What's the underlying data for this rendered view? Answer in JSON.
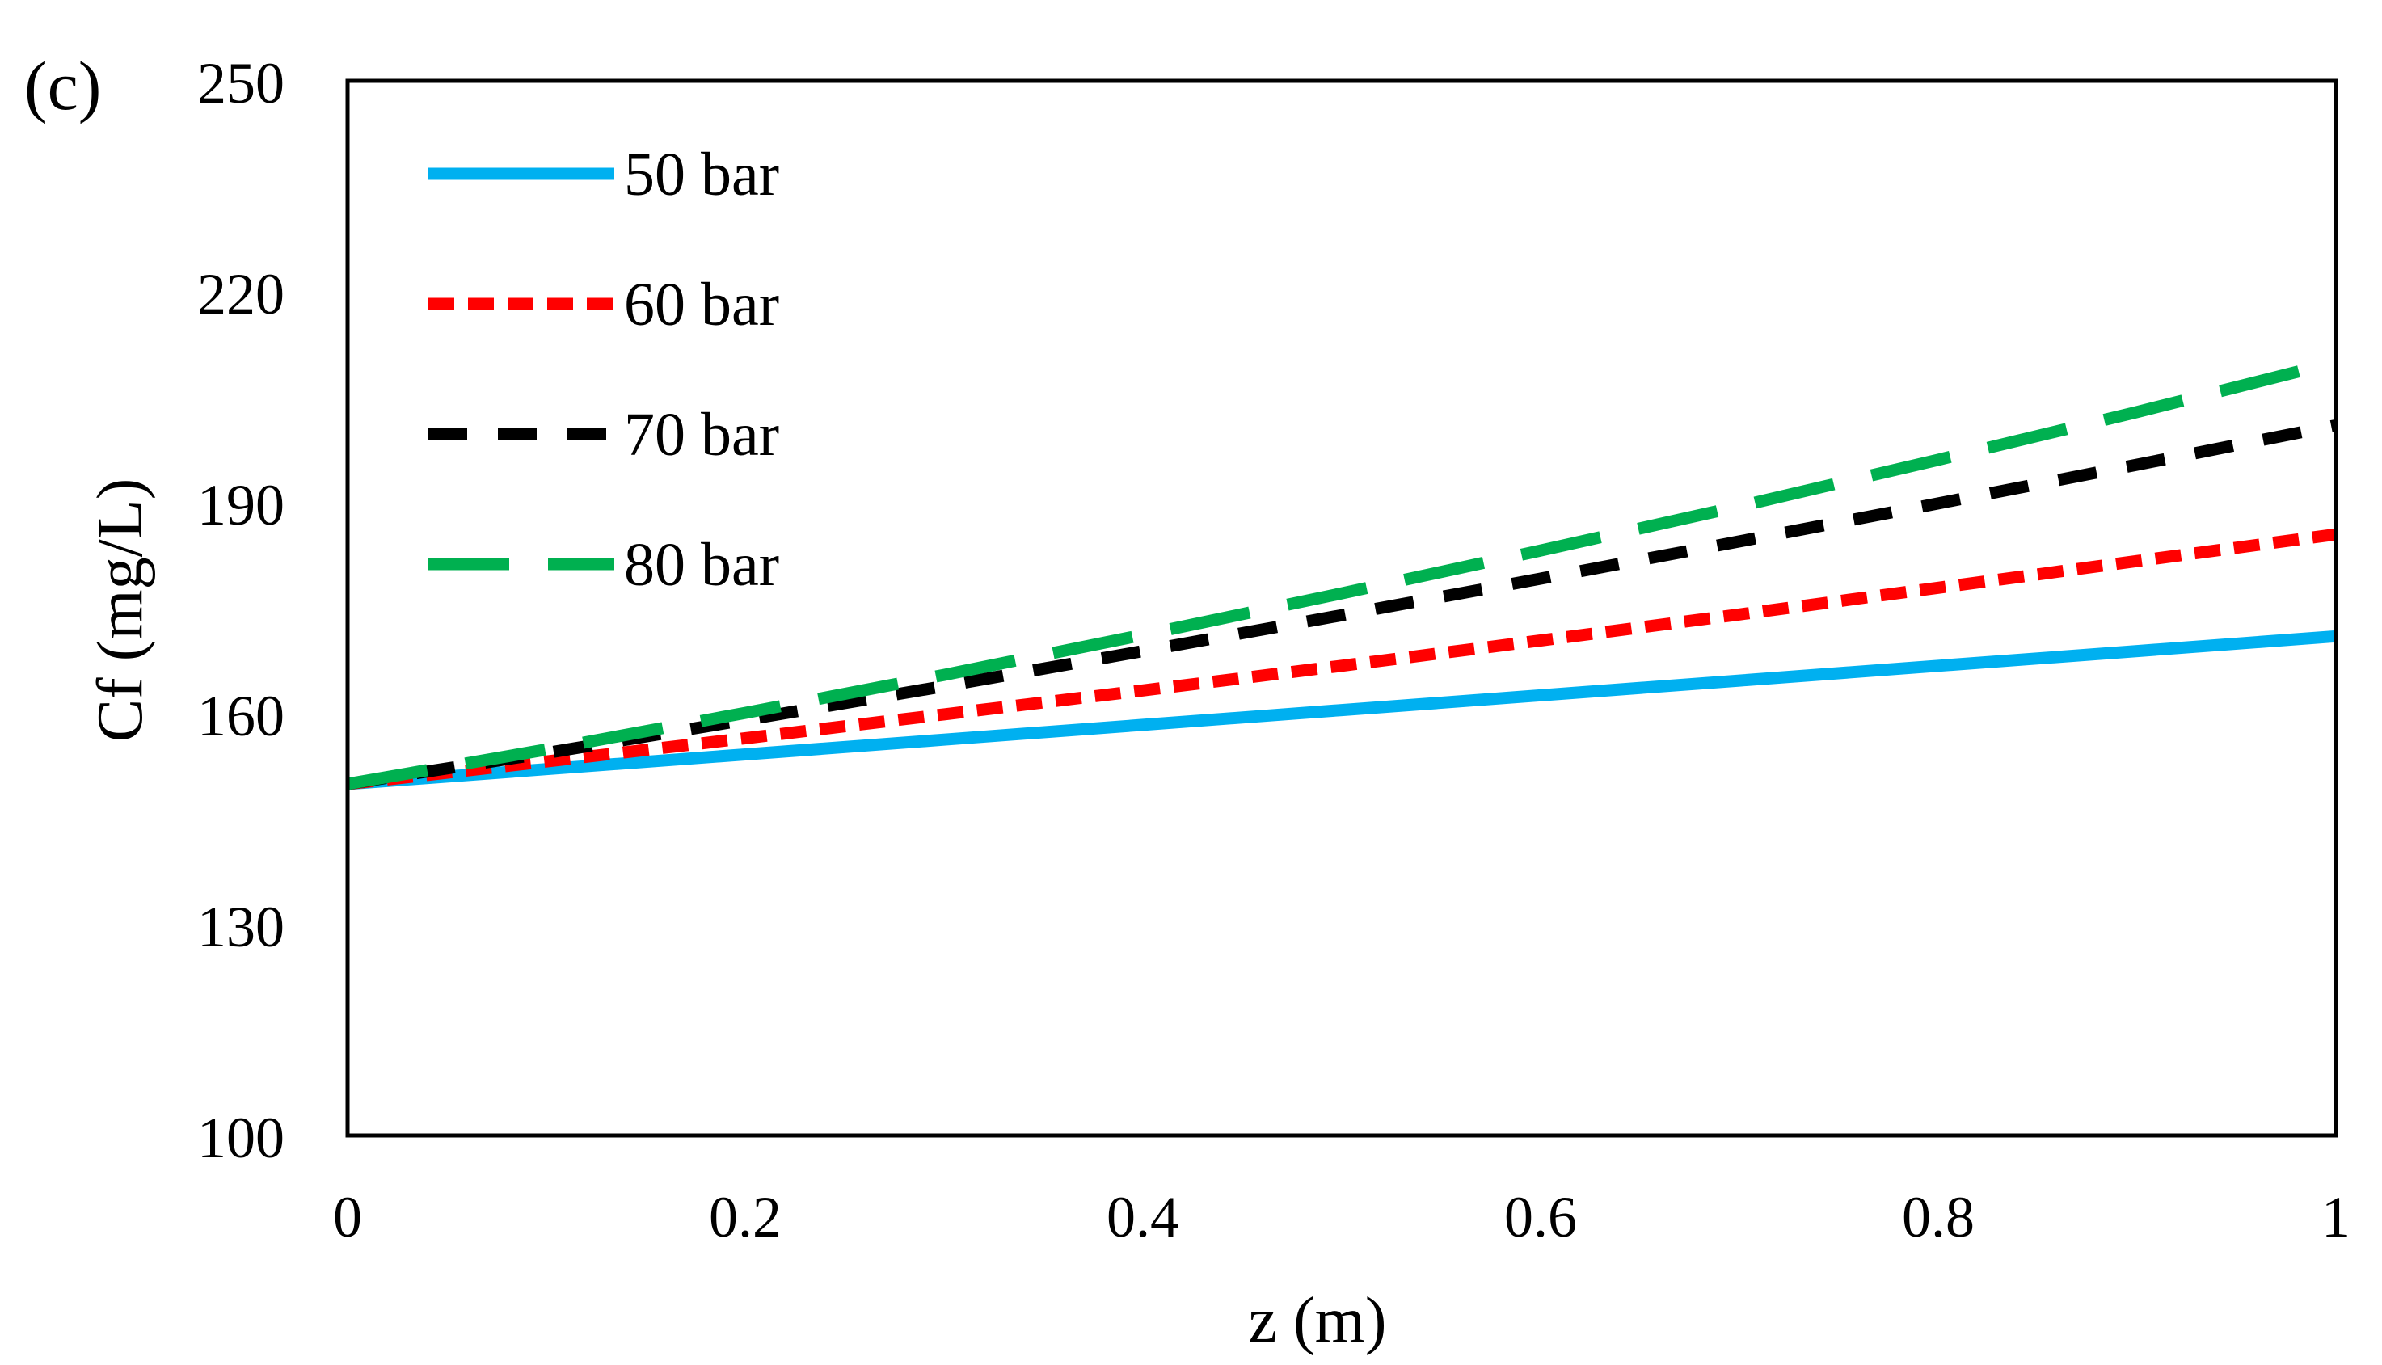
{
  "panel_label": "(c)",
  "chart_data": {
    "type": "line",
    "title": "",
    "xlabel": "z (m)",
    "ylabel": "Cf (mg/L)",
    "xlim": [
      0,
      1
    ],
    "ylim": [
      100,
      250
    ],
    "x_ticks": [
      0,
      0.2,
      0.4,
      0.6,
      0.8,
      1
    ],
    "x_tick_labels": [
      "0",
      "0.2",
      "0.4",
      "0.6",
      "0.8",
      "1"
    ],
    "y_ticks": [
      100,
      130,
      160,
      190,
      220,
      250
    ],
    "y_tick_labels": [
      "100",
      "130",
      "160",
      "190",
      "220",
      "250"
    ],
    "grid": false,
    "legend_position": "top-left",
    "x": [
      0,
      0.1,
      0.2,
      0.3,
      0.4,
      0.5,
      0.6,
      0.7,
      0.8,
      0.9,
      1.0
    ],
    "series": [
      {
        "name": "50 bar",
        "color": "#00B0F0",
        "style": "solid",
        "values": [
          150,
          152.1,
          154.2,
          156.3,
          158.4,
          160.5,
          162.6,
          164.7,
          166.8,
          168.9,
          171
        ]
      },
      {
        "name": "60 bar",
        "color": "#FF0000",
        "style": "dotted",
        "values": [
          150,
          153.2,
          156.5,
          159.9,
          163.3,
          166.8,
          170.4,
          174.1,
          177.9,
          181.7,
          185.5
        ]
      },
      {
        "name": "70 bar",
        "color": "#000000",
        "style": "dashed",
        "values": [
          150,
          154.4,
          159.1,
          163.9,
          168.9,
          174.0,
          179.2,
          184.5,
          189.9,
          195.4,
          201
        ]
      },
      {
        "name": "80 bar",
        "color": "#00B050",
        "style": "long-dash",
        "values": [
          150,
          154.9,
          160.1,
          165.5,
          171.2,
          177.1,
          183.2,
          189.5,
          196.1,
          202.9,
          210
        ]
      }
    ]
  }
}
